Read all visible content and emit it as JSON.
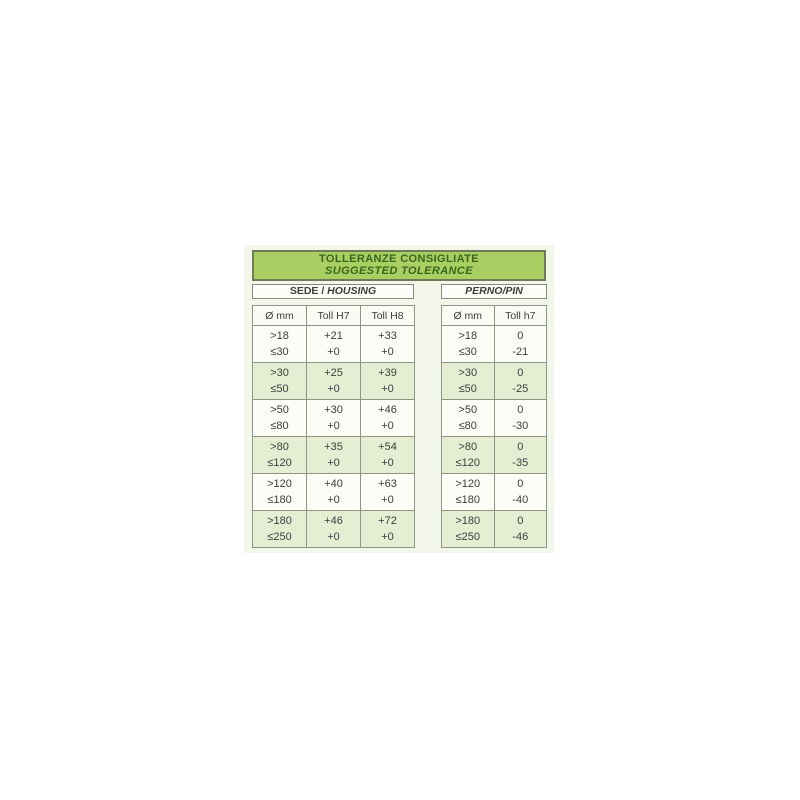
{
  "panel": {
    "title_line1": "TOLLERANZE CONSIGLIATE",
    "title_line2": "SUGGESTED TOLERANCE"
  },
  "housing": {
    "label_prefix": "SEDE / ",
    "label_italic": "HOUSING",
    "columns": [
      "Ø mm",
      "Toll H7",
      "Toll H8"
    ],
    "rows": [
      {
        "d": [
          ">18",
          "≤30"
        ],
        "h7": [
          "+21",
          "+0"
        ],
        "h8": [
          "+33",
          "+0"
        ]
      },
      {
        "d": [
          ">30",
          "≤50"
        ],
        "h7": [
          "+25",
          "+0"
        ],
        "h8": [
          "+39",
          "+0"
        ]
      },
      {
        "d": [
          ">50",
          "≤80"
        ],
        "h7": [
          "+30",
          "+0"
        ],
        "h8": [
          "+46",
          "+0"
        ]
      },
      {
        "d": [
          ">80",
          "≤120"
        ],
        "h7": [
          "+35",
          "+0"
        ],
        "h8": [
          "+54",
          "+0"
        ]
      },
      {
        "d": [
          ">120",
          "≤180"
        ],
        "h7": [
          "+40",
          "+0"
        ],
        "h8": [
          "+63",
          "+0"
        ]
      },
      {
        "d": [
          ">180",
          "≤250"
        ],
        "h7": [
          "+46",
          "+0"
        ],
        "h8": [
          "+72",
          "+0"
        ]
      }
    ]
  },
  "pin": {
    "label": "PERNO/PIN",
    "columns": [
      "Ø mm",
      "Toll h7"
    ],
    "rows": [
      {
        "d": [
          ">18",
          "≤30"
        ],
        "h7": [
          "0",
          "-21"
        ]
      },
      {
        "d": [
          ">30",
          "≤50"
        ],
        "h7": [
          "0",
          "-25"
        ]
      },
      {
        "d": [
          ">50",
          "≤80"
        ],
        "h7": [
          "0",
          "-30"
        ]
      },
      {
        "d": [
          ">80",
          "≤120"
        ],
        "h7": [
          "0",
          "-35"
        ]
      },
      {
        "d": [
          ">120",
          "≤180"
        ],
        "h7": [
          "0",
          "-40"
        ]
      },
      {
        "d": [
          ">180",
          "≤250"
        ],
        "h7": [
          "0",
          "-46"
        ]
      }
    ]
  },
  "colors": {
    "title_bg": "#a9ce62",
    "title_border": "#6e7a58",
    "title_text": "#38661c",
    "panel_bg": "#f3f7e9",
    "row_green": "#e5eed3",
    "row_white": "#fcfdf7",
    "grid_border": "#8e9486",
    "text": "#3d3d3d"
  }
}
